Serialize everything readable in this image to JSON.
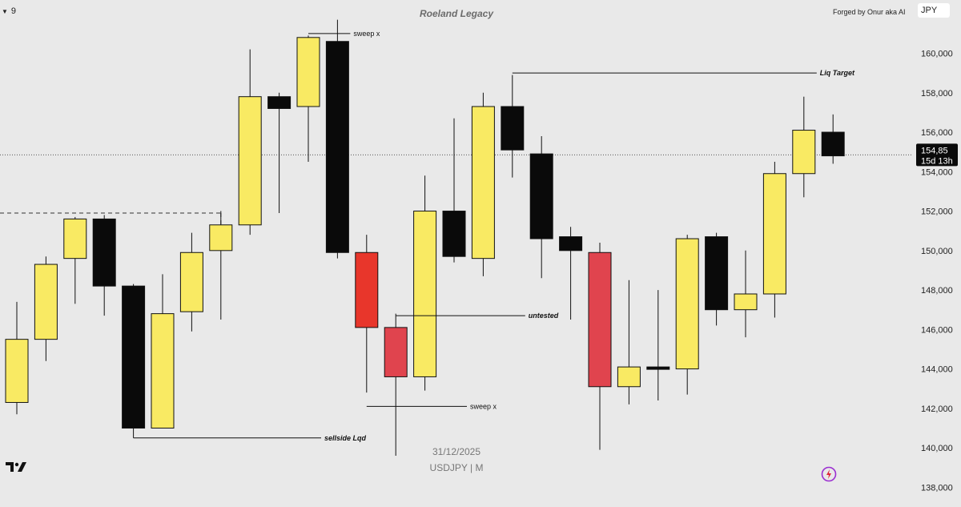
{
  "header": {
    "dropdown_value": "9",
    "title": "Roeland Legacy",
    "credit": "Forged by Onur aka AI",
    "currency": "JPY"
  },
  "footer": {
    "date": "31/12/2025",
    "symbol": "USDJPY | M"
  },
  "icons": {
    "chevron": "chevron-down-icon",
    "logo": "tradingview-logo-icon",
    "bolt": "lightning-bolt-icon"
  },
  "colors": {
    "bull": "#f9ea63",
    "bear": "#0a0a0a",
    "red_strong": "#e8362b",
    "red_soft": "#e0444e",
    "background": "#e9e9e9"
  },
  "chart_data": {
    "type": "candlestick",
    "title": "Roeland Legacy",
    "symbol": "USDJPY",
    "timeframe": "M",
    "ylim": [
      137000,
      162700
    ],
    "yticks": [
      138000,
      140000,
      142000,
      144000,
      146000,
      148000,
      150000,
      152000,
      154000,
      156000,
      158000,
      160000
    ],
    "ytick_labels": [
      "138,000",
      "140,000",
      "142,000",
      "144,000",
      "146,000",
      "148,000",
      "150,000",
      "152,000",
      "154,000",
      "156,000",
      "158,000",
      "160,000"
    ],
    "current_price": 154.85,
    "current_price_label": "154,85",
    "current_value": 154850,
    "countdown_label": "15d 13h",
    "candles": [
      {
        "o": 142300,
        "h": 147400,
        "l": 141700,
        "c": 145500,
        "color": "bull"
      },
      {
        "o": 145500,
        "h": 149700,
        "l": 144400,
        "c": 149300,
        "color": "bull"
      },
      {
        "o": 149600,
        "h": 151700,
        "l": 147300,
        "c": 151600,
        "color": "bull"
      },
      {
        "o": 151600,
        "h": 151800,
        "l": 146700,
        "c": 148200,
        "color": "bear"
      },
      {
        "o": 148200,
        "h": 148300,
        "l": 140500,
        "c": 141000,
        "color": "bear"
      },
      {
        "o": 141000,
        "h": 148800,
        "l": 141000,
        "c": 146800,
        "color": "bull"
      },
      {
        "o": 146900,
        "h": 150900,
        "l": 145900,
        "c": 149900,
        "color": "bull"
      },
      {
        "o": 150000,
        "h": 152000,
        "l": 146500,
        "c": 151300,
        "color": "bull"
      },
      {
        "o": 151300,
        "h": 160200,
        "l": 150800,
        "c": 157800,
        "color": "bull"
      },
      {
        "o": 157800,
        "h": 158000,
        "l": 151900,
        "c": 157200,
        "color": "bear"
      },
      {
        "o": 157300,
        "h": 160900,
        "l": 154500,
        "c": 160800,
        "color": "bull"
      },
      {
        "o": 160600,
        "h": 161700,
        "l": 149600,
        "c": 149900,
        "color": "bear"
      },
      {
        "o": 149900,
        "h": 150800,
        "l": 142800,
        "c": 146100,
        "color": "red_strong"
      },
      {
        "o": 146100,
        "h": 146800,
        "l": 139600,
        "c": 143600,
        "color": "red_soft"
      },
      {
        "o": 143600,
        "h": 153800,
        "l": 142900,
        "c": 152000,
        "color": "bull"
      },
      {
        "o": 152000,
        "h": 156700,
        "l": 149400,
        "c": 149700,
        "color": "bear"
      },
      {
        "o": 149600,
        "h": 158000,
        "l": 148700,
        "c": 157300,
        "color": "bull"
      },
      {
        "o": 157300,
        "h": 158900,
        "l": 153700,
        "c": 155100,
        "color": "bear"
      },
      {
        "o": 154900,
        "h": 155800,
        "l": 148600,
        "c": 150600,
        "color": "bear"
      },
      {
        "o": 150700,
        "h": 151200,
        "l": 146500,
        "c": 150000,
        "color": "bear"
      },
      {
        "o": 149900,
        "h": 150400,
        "l": 139900,
        "c": 143100,
        "color": "red_soft"
      },
      {
        "o": 143100,
        "h": 148500,
        "l": 142200,
        "c": 144100,
        "color": "bull"
      },
      {
        "o": 144100,
        "h": 148000,
        "l": 142400,
        "c": 144100,
        "color": "bear"
      },
      {
        "o": 144000,
        "h": 150800,
        "l": 142700,
        "c": 150600,
        "color": "bull"
      },
      {
        "o": 150700,
        "h": 150900,
        "l": 146200,
        "c": 147000,
        "color": "bear"
      },
      {
        "o": 147000,
        "h": 150000,
        "l": 145600,
        "c": 147800,
        "color": "bull"
      },
      {
        "o": 147800,
        "h": 154500,
        "l": 146600,
        "c": 153900,
        "color": "bull"
      },
      {
        "o": 153900,
        "h": 157800,
        "l": 152700,
        "c": 156100,
        "color": "bull"
      },
      {
        "o": 156000,
        "h": 156900,
        "l": 154400,
        "c": 154800,
        "color": "bear"
      }
    ],
    "annotations": [
      {
        "label": "sweep x",
        "value": 161000,
        "from_candle": 10,
        "to_candle": 11,
        "style": "normal"
      },
      {
        "label": "Liq Target",
        "value": 159000,
        "from_candle": 17,
        "to_candle": 27,
        "style": "italic-bold"
      },
      {
        "label": "untested",
        "value": 146700,
        "from_candle": 13,
        "to_candle": 17,
        "style": "italic-bold"
      },
      {
        "label": "sweep x",
        "value": 142100,
        "from_candle": 12,
        "to_candle": 15,
        "style": "normal"
      },
      {
        "label": "sellside Lqd",
        "value": 140500,
        "from_candle": 4,
        "to_candle": 10,
        "style": "italic-bold"
      }
    ],
    "level_line": {
      "value": 151900,
      "from_candle": 0,
      "to_candle": 7,
      "style": "dashed"
    }
  }
}
